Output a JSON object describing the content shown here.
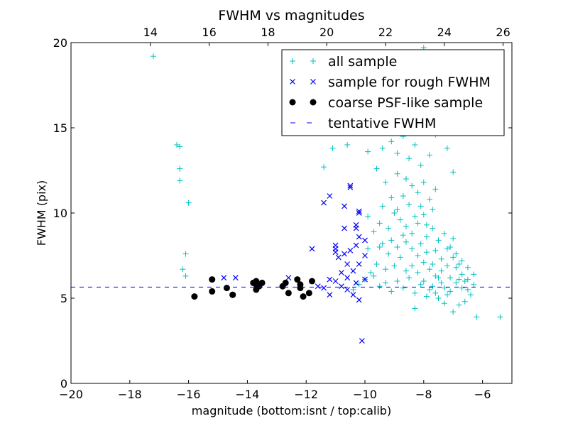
{
  "chart_data": {
    "type": "scatter",
    "title": "FWHM vs magnitudes",
    "xlabel": "magnitude (bottom:isnt / top:calib)",
    "ylabel": "FWHM (pix)",
    "xlim": [
      -20,
      -5
    ],
    "ylim": [
      0,
      20
    ],
    "x_ticks": [
      -20,
      -18,
      -16,
      -14,
      -12,
      -10,
      -8,
      -6
    ],
    "x_tick_labels": [
      "−20",
      "−18",
      "−16",
      "−14",
      "−12",
      "−10",
      "−8",
      "−6"
    ],
    "y_ticks": [
      0,
      5,
      10,
      15,
      20
    ],
    "y_tick_labels": [
      "0",
      "5",
      "10",
      "15",
      "20"
    ],
    "top_axis": {
      "ticks": [
        14,
        16,
        18,
        20,
        22,
        24,
        26
      ],
      "tick_labels": [
        "14",
        "16",
        "18",
        "20",
        "22",
        "24",
        "26"
      ],
      "offset": 31.3
    },
    "grid": false,
    "legend_position": "top-right",
    "colors": {
      "all": "#00bfbf",
      "rough": "#0000ff",
      "coarse": "#000000",
      "fwhm_line": "#0000ff"
    },
    "series": [
      {
        "name": "all sample",
        "marker": "plus",
        "points": [
          [
            -17.2,
            19.2
          ],
          [
            -16.4,
            14.0
          ],
          [
            -16.3,
            13.9
          ],
          [
            -16.3,
            12.6
          ],
          [
            -16.3,
            11.9
          ],
          [
            -16.0,
            10.6
          ],
          [
            -16.1,
            7.6
          ],
          [
            -16.2,
            6.7
          ],
          [
            -16.1,
            6.3
          ],
          [
            -11.4,
            12.7
          ],
          [
            -11.1,
            13.8
          ],
          [
            -10.6,
            14.0
          ],
          [
            -10.2,
            15.0
          ],
          [
            -9.7,
            15.8
          ],
          [
            -9.3,
            17.0
          ],
          [
            -9.0,
            18.7
          ],
          [
            -8.5,
            19.2
          ],
          [
            -8.0,
            19.7
          ],
          [
            -7.5,
            15.2
          ],
          [
            -7.2,
            13.8
          ],
          [
            -7.0,
            12.4
          ],
          [
            -6.2,
            3.9
          ],
          [
            -5.4,
            3.9
          ],
          [
            -9.9,
            13.6
          ],
          [
            -9.6,
            12.6
          ],
          [
            -9.4,
            13.8
          ],
          [
            -9.1,
            14.2
          ],
          [
            -8.9,
            13.5
          ],
          [
            -8.7,
            14.5
          ],
          [
            -8.5,
            13.2
          ],
          [
            -8.3,
            14.0
          ],
          [
            -8.1,
            12.8
          ],
          [
            -7.8,
            13.4
          ],
          [
            -7.6,
            14.6
          ],
          [
            -8.9,
            12.3
          ],
          [
            -8.6,
            12.0
          ],
          [
            -8.4,
            11.6
          ],
          [
            -8.2,
            11.2
          ],
          [
            -8.0,
            11.8
          ],
          [
            -7.8,
            10.8
          ],
          [
            -7.6,
            11.4
          ],
          [
            -9.3,
            11.8
          ],
          [
            -9.1,
            10.9
          ],
          [
            -9.4,
            10.4
          ],
          [
            -9.0,
            10.0
          ],
          [
            -8.8,
            9.6
          ],
          [
            -8.6,
            9.2
          ],
          [
            -8.4,
            8.8
          ],
          [
            -8.2,
            9.4
          ],
          [
            -8.0,
            9.9
          ],
          [
            -7.9,
            8.6
          ],
          [
            -7.7,
            9.1
          ],
          [
            -7.5,
            8.4
          ],
          [
            -7.3,
            8.8
          ],
          [
            -7.1,
            8.0
          ],
          [
            -6.9,
            7.6
          ],
          [
            -6.7,
            7.2
          ],
          [
            -6.5,
            6.8
          ],
          [
            -6.3,
            6.4
          ],
          [
            -6.5,
            5.5
          ],
          [
            -6.6,
            4.8
          ],
          [
            -6.8,
            4.6
          ],
          [
            -7.0,
            4.2
          ],
          [
            -7.2,
            5.2
          ],
          [
            -7.4,
            5.9
          ],
          [
            -7.6,
            6.3
          ],
          [
            -7.8,
            6.7
          ],
          [
            -8.0,
            7.1
          ],
          [
            -8.2,
            7.5
          ],
          [
            -8.4,
            7.9
          ],
          [
            -8.6,
            8.3
          ],
          [
            -8.8,
            7.4
          ],
          [
            -9.0,
            6.9
          ],
          [
            -9.2,
            7.6
          ],
          [
            -9.4,
            8.2
          ],
          [
            -9.6,
            7.0
          ],
          [
            -9.8,
            6.5
          ],
          [
            -10.0,
            6.1
          ],
          [
            -9.9,
            7.9
          ],
          [
            -9.7,
            8.9
          ],
          [
            -9.5,
            9.4
          ],
          [
            -9.9,
            9.8
          ],
          [
            -10.2,
            5.8
          ],
          [
            -10.4,
            5.5
          ],
          [
            -9.3,
            5.9
          ],
          [
            -9.1,
            5.4
          ],
          [
            -8.9,
            6.0
          ],
          [
            -8.7,
            5.6
          ],
          [
            -8.5,
            6.2
          ],
          [
            -8.3,
            5.3
          ],
          [
            -8.1,
            5.8
          ],
          [
            -7.9,
            5.1
          ],
          [
            -7.7,
            5.7
          ],
          [
            -7.5,
            5.0
          ],
          [
            -7.3,
            4.7
          ],
          [
            -7.1,
            5.4
          ],
          [
            -6.9,
            5.9
          ],
          [
            -6.7,
            6.4
          ],
          [
            -8.3,
            4.4
          ],
          [
            -7.6,
            7.8
          ],
          [
            -7.4,
            7.3
          ],
          [
            -7.2,
            6.9
          ],
          [
            -7.0,
            7.4
          ],
          [
            -6.8,
            6.1
          ],
          [
            -8.1,
            8.2
          ],
          [
            -7.9,
            9.3
          ],
          [
            -7.7,
            10.2
          ],
          [
            -8.5,
            10.5
          ],
          [
            -8.7,
            11.0
          ],
          [
            -8.9,
            10.2
          ],
          [
            -9.2,
            9.1
          ],
          [
            -9.5,
            8.0
          ],
          [
            -8.6,
            6.6
          ],
          [
            -8.4,
            6.9
          ],
          [
            -8.2,
            6.5
          ],
          [
            -8.0,
            6.0
          ],
          [
            -7.8,
            5.5
          ],
          [
            -7.6,
            5.3
          ],
          [
            -7.4,
            6.6
          ],
          [
            -7.2,
            7.9
          ],
          [
            -7.0,
            8.5
          ],
          [
            -6.8,
            7.0
          ],
          [
            -6.6,
            6.0
          ],
          [
            -6.4,
            5.2
          ],
          [
            -9.7,
            6.3
          ],
          [
            -9.5,
            5.7
          ],
          [
            -9.3,
            6.7
          ],
          [
            -9.1,
            8.4
          ],
          [
            -8.9,
            8.0
          ],
          [
            -8.7,
            8.7
          ],
          [
            -8.3,
            9.8
          ],
          [
            -8.1,
            10.4
          ],
          [
            -7.9,
            7.7
          ],
          [
            -7.7,
            7.0
          ],
          [
            -7.5,
            6.2
          ],
          [
            -7.3,
            5.6
          ],
          [
            -7.1,
            6.2
          ],
          [
            -6.9,
            6.8
          ],
          [
            -6.7,
            5.6
          ],
          [
            -6.5,
            6.1
          ],
          [
            -6.3,
            5.8
          ]
        ]
      },
      {
        "name": "sample for rough FWHM",
        "marker": "x",
        "points": [
          [
            -14.8,
            6.2
          ],
          [
            -14.4,
            6.2
          ],
          [
            -12.6,
            6.2
          ],
          [
            -11.2,
            11.0
          ],
          [
            -11.4,
            10.6
          ],
          [
            -10.5,
            11.6
          ],
          [
            -10.5,
            11.5
          ],
          [
            -10.2,
            10.0
          ],
          [
            -10.2,
            10.1
          ],
          [
            -10.3,
            9.3
          ],
          [
            -10.3,
            9.1
          ],
          [
            -10.7,
            10.4
          ],
          [
            -10.7,
            9.1
          ],
          [
            -11.0,
            8.1
          ],
          [
            -11.0,
            7.9
          ],
          [
            -11.0,
            7.7
          ],
          [
            -10.9,
            7.4
          ],
          [
            -10.7,
            7.6
          ],
          [
            -10.5,
            7.8
          ],
          [
            -10.3,
            8.1
          ],
          [
            -10.2,
            8.6
          ],
          [
            -10.0,
            8.4
          ],
          [
            -11.8,
            7.9
          ],
          [
            -11.2,
            6.1
          ],
          [
            -11.0,
            6.0
          ],
          [
            -10.8,
            5.7
          ],
          [
            -10.6,
            5.5
          ],
          [
            -10.4,
            5.2
          ],
          [
            -10.6,
            6.2
          ],
          [
            -10.4,
            6.6
          ],
          [
            -10.2,
            7.0
          ],
          [
            -10.0,
            7.5
          ],
          [
            -10.6,
            7.0
          ],
          [
            -11.4,
            5.6
          ],
          [
            -11.6,
            5.7
          ],
          [
            -11.2,
            5.2
          ],
          [
            -10.2,
            4.9
          ],
          [
            -10.1,
            2.5
          ],
          [
            -10.0,
            6.1
          ],
          [
            -10.3,
            5.9
          ],
          [
            -10.8,
            6.5
          ]
        ]
      },
      {
        "name": "coarse PSF-like sample",
        "marker": "circle",
        "points": [
          [
            -15.8,
            5.1
          ],
          [
            -15.2,
            6.1
          ],
          [
            -15.2,
            5.4
          ],
          [
            -14.7,
            5.6
          ],
          [
            -14.5,
            5.2
          ],
          [
            -14.5,
            5.2
          ],
          [
            -13.7,
            6.0
          ],
          [
            -13.7,
            5.5
          ],
          [
            -13.7,
            5.8
          ],
          [
            -13.8,
            5.9
          ],
          [
            -13.6,
            5.7
          ],
          [
            -13.5,
            5.9
          ],
          [
            -12.8,
            5.7
          ],
          [
            -12.7,
            5.9
          ],
          [
            -12.6,
            5.3
          ],
          [
            -12.3,
            6.1
          ],
          [
            -12.2,
            5.6
          ],
          [
            -12.2,
            5.8
          ],
          [
            -12.1,
            5.1
          ],
          [
            -11.9,
            5.3
          ],
          [
            -11.8,
            6.0
          ]
        ]
      }
    ],
    "reference_lines": [
      {
        "name": "tentative FWHM",
        "y": 5.65,
        "style": "dashed"
      }
    ]
  }
}
